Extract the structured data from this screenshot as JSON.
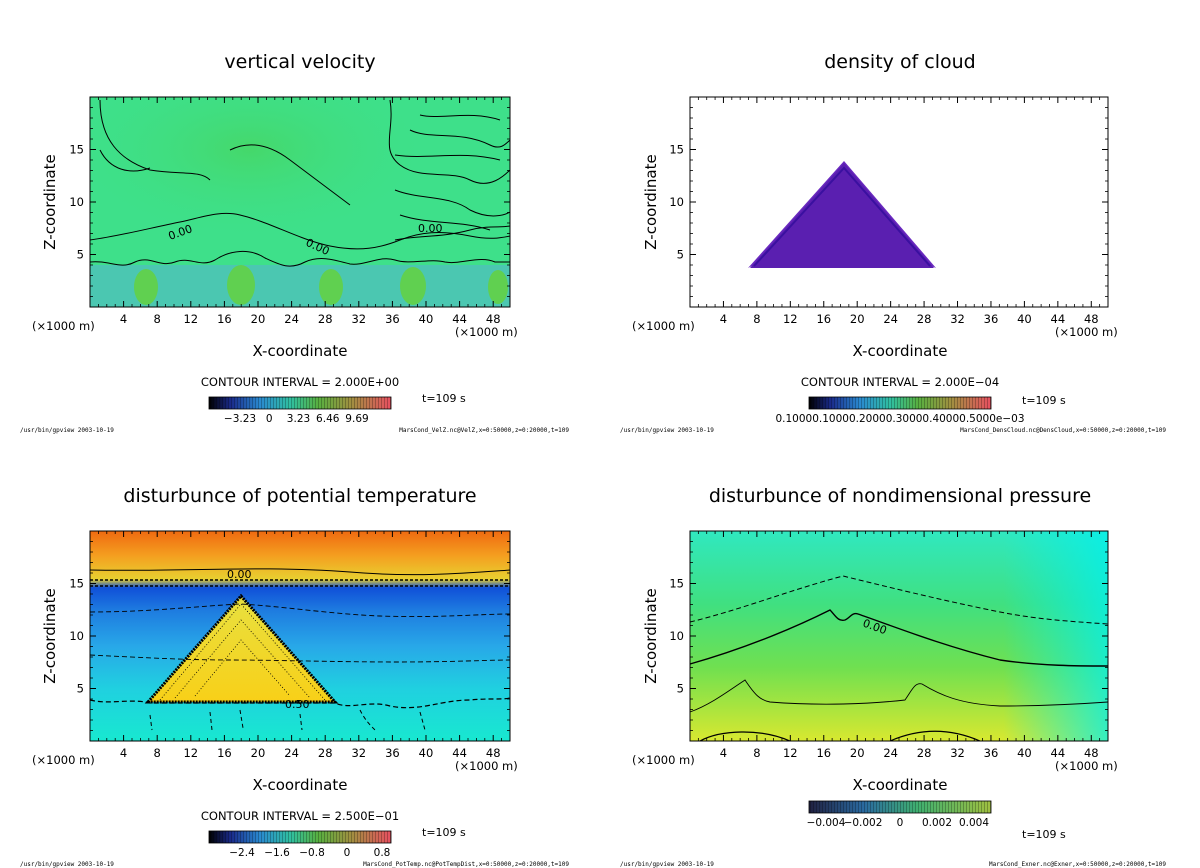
{
  "colors": {
    "field_green": "#3ee08a",
    "field_green_light": "#5cf0a0",
    "cloud_purple": "#5a1fb0",
    "warm_orange": "#f07a1a",
    "blue": "#1f80e0",
    "yellow": "#f5d21a",
    "cyan": "#1ce8e0"
  },
  "footer_left": "/usr/bin/gpview  2003-10-19",
  "panels": [
    {
      "title": "vertical velocity",
      "xlabel": "X-coordinate",
      "ylabel": "Z-coordinate",
      "x_unit_left": "(×1000 m)",
      "x_unit_right": "(×1000 m)",
      "contour_interval": "CONTOUR INTERVAL = 2.000E+00",
      "time": "t=109 s",
      "colorbar_ticks": [
        "−3.23",
        "0",
        "3.23",
        "6.46",
        "9.69"
      ],
      "footer_right": "MarsCond_VelZ.nc@VelZ,x=0:50000,z=0:20000,t=109",
      "contour_labels": [
        "0.00",
        "0.00",
        "0.00"
      ]
    },
    {
      "title": "density of cloud",
      "xlabel": "X-coordinate",
      "ylabel": "Z-coordinate",
      "x_unit_left": "(×1000 m)",
      "x_unit_right": "(×1000 m)",
      "contour_interval": "CONTOUR INTERVAL = 2.000E−04",
      "time": "t=109 s",
      "colorbar_ticks": [
        "0.10000.10000.20000.30000.40000.5000e−03"
      ],
      "footer_right": "MarsCond_DensCloud.nc@DensCloud,x=0:50000,z=0:20000,t=109",
      "contour_labels": []
    },
    {
      "title": "disturbunce of potential temperature",
      "xlabel": "X-coordinate",
      "ylabel": "Z-coordinate",
      "x_unit_left": "(×1000 m)",
      "x_unit_right": "(×1000 m)",
      "contour_interval": "CONTOUR INTERVAL = 2.500E−01",
      "time": "t=109 s",
      "colorbar_ticks": [
        "−2.4",
        "−1.6",
        "−0.8",
        "0",
        "0.8"
      ],
      "footer_right": "MarsCond_PotTemp.nc@PotTempDist,x=0:50000,z=0:20000,t=109",
      "contour_labels": [
        "0.00",
        "0.50"
      ]
    },
    {
      "title": "disturbunce of nondimensional pressure",
      "xlabel": "X-coordinate",
      "ylabel": "Z-coordinate",
      "x_unit_left": "(×1000 m)",
      "x_unit_right": "(×1000 m)",
      "contour_interval": "",
      "time": "t=109 s",
      "colorbar_ticks": [
        "−0.004",
        "−0.002",
        "0",
        "0.002",
        "0.004"
      ],
      "footer_right": "MarsCond_Exner.nc@Exner,x=0:50000,z=0:20000,t=109",
      "contour_labels": [
        "0.00"
      ]
    }
  ],
  "chart_data": [
    {
      "type": "heatmap",
      "title": "vertical velocity",
      "xlabel": "X-coordinate",
      "ylabel": "Z-coordinate",
      "x_ticks": [
        4,
        8,
        12,
        16,
        20,
        24,
        28,
        32,
        36,
        40,
        44,
        48
      ],
      "y_ticks": [
        5,
        10,
        15
      ],
      "xlim": [
        0,
        50
      ],
      "ylim": [
        0,
        20
      ],
      "colorbar_ticks": [
        -3.23,
        0,
        3.23,
        6.46,
        9.69
      ],
      "contour_interval": 2.0
    },
    {
      "type": "heatmap",
      "title": "density of cloud",
      "xlabel": "X-coordinate",
      "ylabel": "Z-coordinate",
      "x_ticks": [
        4,
        8,
        12,
        16,
        20,
        24,
        28,
        32,
        36,
        40,
        44,
        48
      ],
      "y_ticks": [
        5,
        10,
        15
      ],
      "xlim": [
        0,
        50
      ],
      "ylim": [
        0,
        20
      ],
      "contour_interval": 0.0002,
      "cloud_region": {
        "x_left": 6.5,
        "x_right": 29.5,
        "x_peak": 18.2,
        "z_base": 3.5,
        "z_peak": 13.8
      }
    },
    {
      "type": "heatmap",
      "title": "disturbunce of potential temperature",
      "xlabel": "X-coordinate",
      "ylabel": "Z-coordinate",
      "x_ticks": [
        4,
        8,
        12,
        16,
        20,
        24,
        28,
        32,
        36,
        40,
        44,
        48
      ],
      "y_ticks": [
        5,
        10,
        15
      ],
      "xlim": [
        0,
        50
      ],
      "ylim": [
        0,
        20
      ],
      "colorbar_ticks": [
        -2.4,
        -1.6,
        -0.8,
        0,
        0.8
      ],
      "contour_interval": 0.25
    },
    {
      "type": "heatmap",
      "title": "disturbunce of nondimensional pressure",
      "xlabel": "X-coordinate",
      "ylabel": "Z-coordinate",
      "x_ticks": [
        4,
        8,
        12,
        16,
        20,
        24,
        28,
        32,
        36,
        40,
        44,
        48
      ],
      "y_ticks": [
        5,
        10,
        15
      ],
      "xlim": [
        0,
        50
      ],
      "ylim": [
        0,
        20
      ],
      "colorbar_ticks": [
        -0.004,
        -0.002,
        0,
        0.002,
        0.004
      ]
    }
  ]
}
